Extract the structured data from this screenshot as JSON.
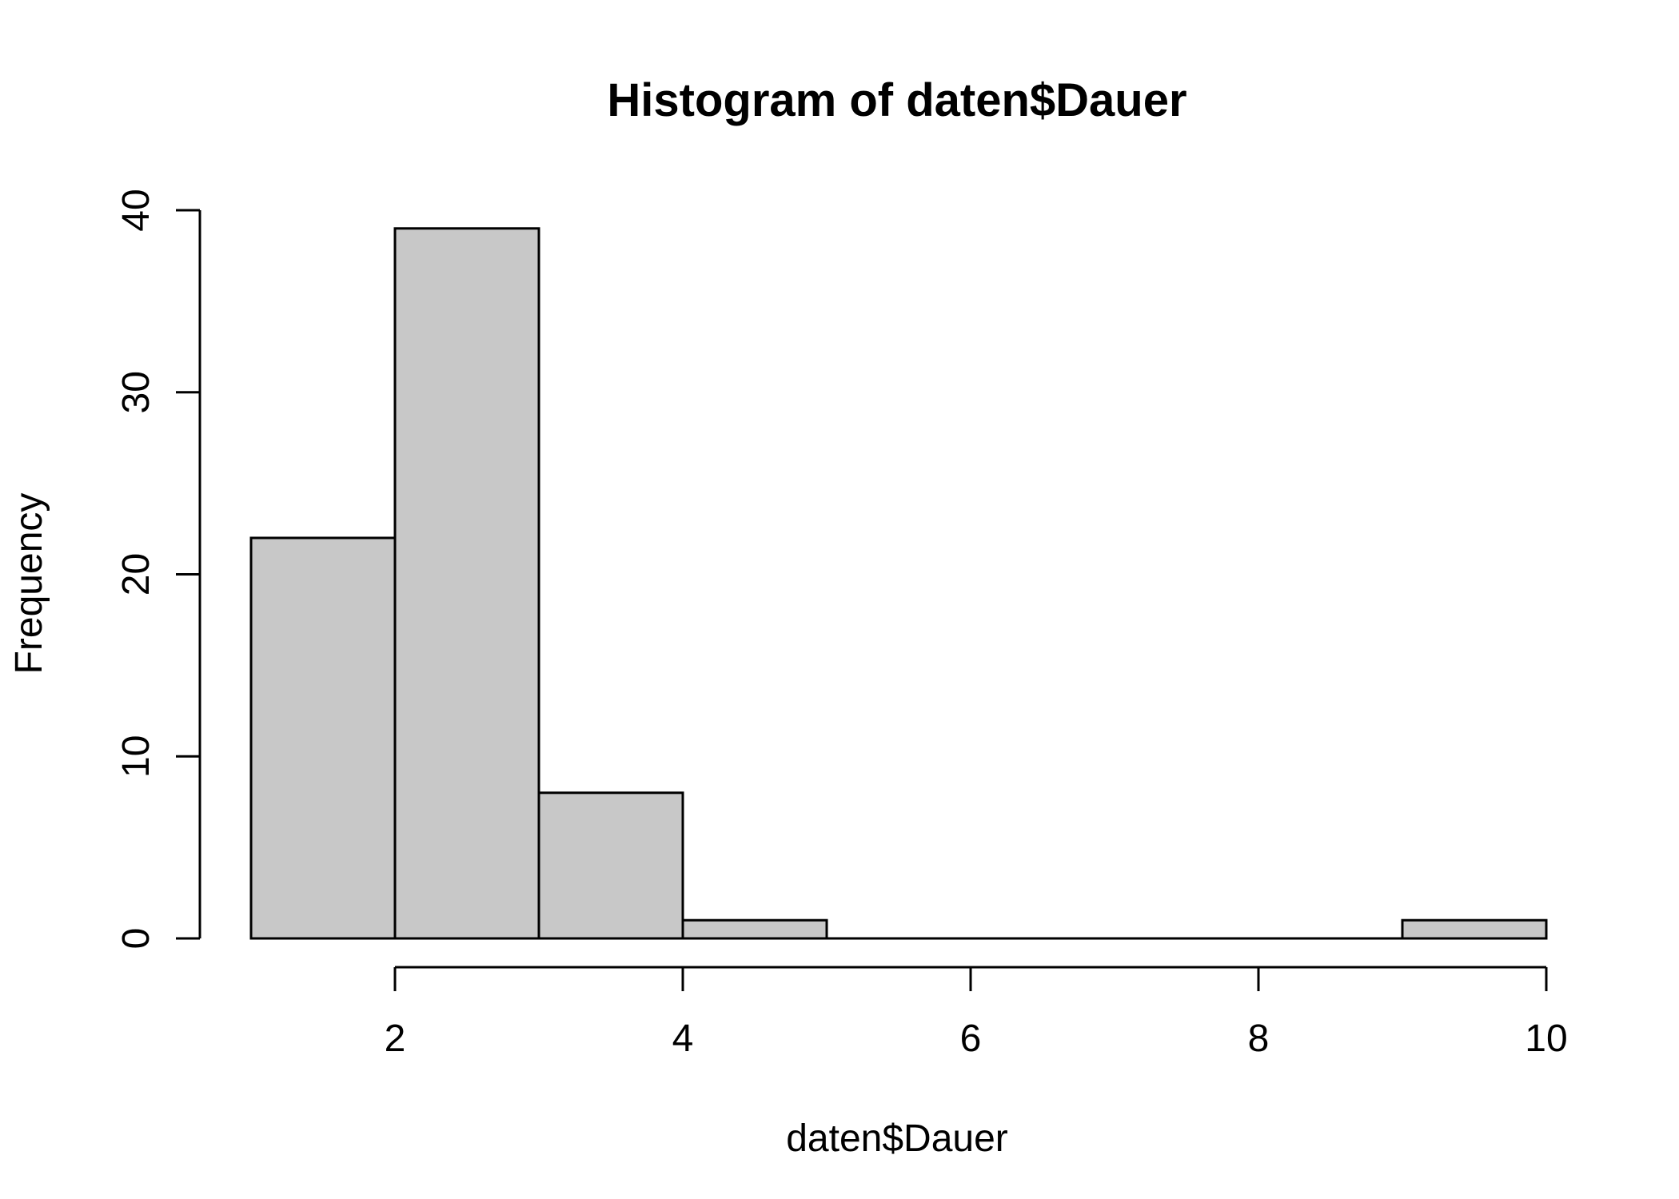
{
  "chart_data": {
    "type": "bar",
    "title": "Histogram of daten$Dauer",
    "xlabel": "daten$Dauer",
    "ylabel": "Frequency",
    "bins": [
      {
        "from": 1,
        "to": 2,
        "count": 22
      },
      {
        "from": 2,
        "to": 3,
        "count": 39
      },
      {
        "from": 3,
        "to": 4,
        "count": 8
      },
      {
        "from": 4,
        "to": 5,
        "count": 1
      },
      {
        "from": 5,
        "to": 6,
        "count": 0
      },
      {
        "from": 6,
        "to": 7,
        "count": 0
      },
      {
        "from": 7,
        "to": 8,
        "count": 0
      },
      {
        "from": 8,
        "to": 9,
        "count": 0
      },
      {
        "from": 9,
        "to": 10,
        "count": 1
      }
    ],
    "xlim": [
      1,
      10
    ],
    "ylim": [
      0,
      40
    ],
    "x_ticks": [
      2,
      4,
      6,
      8,
      10
    ],
    "y_ticks": [
      0,
      10,
      20,
      30,
      40
    ],
    "bar_color": "#c8c8c8",
    "grid": false,
    "legend": "none"
  }
}
